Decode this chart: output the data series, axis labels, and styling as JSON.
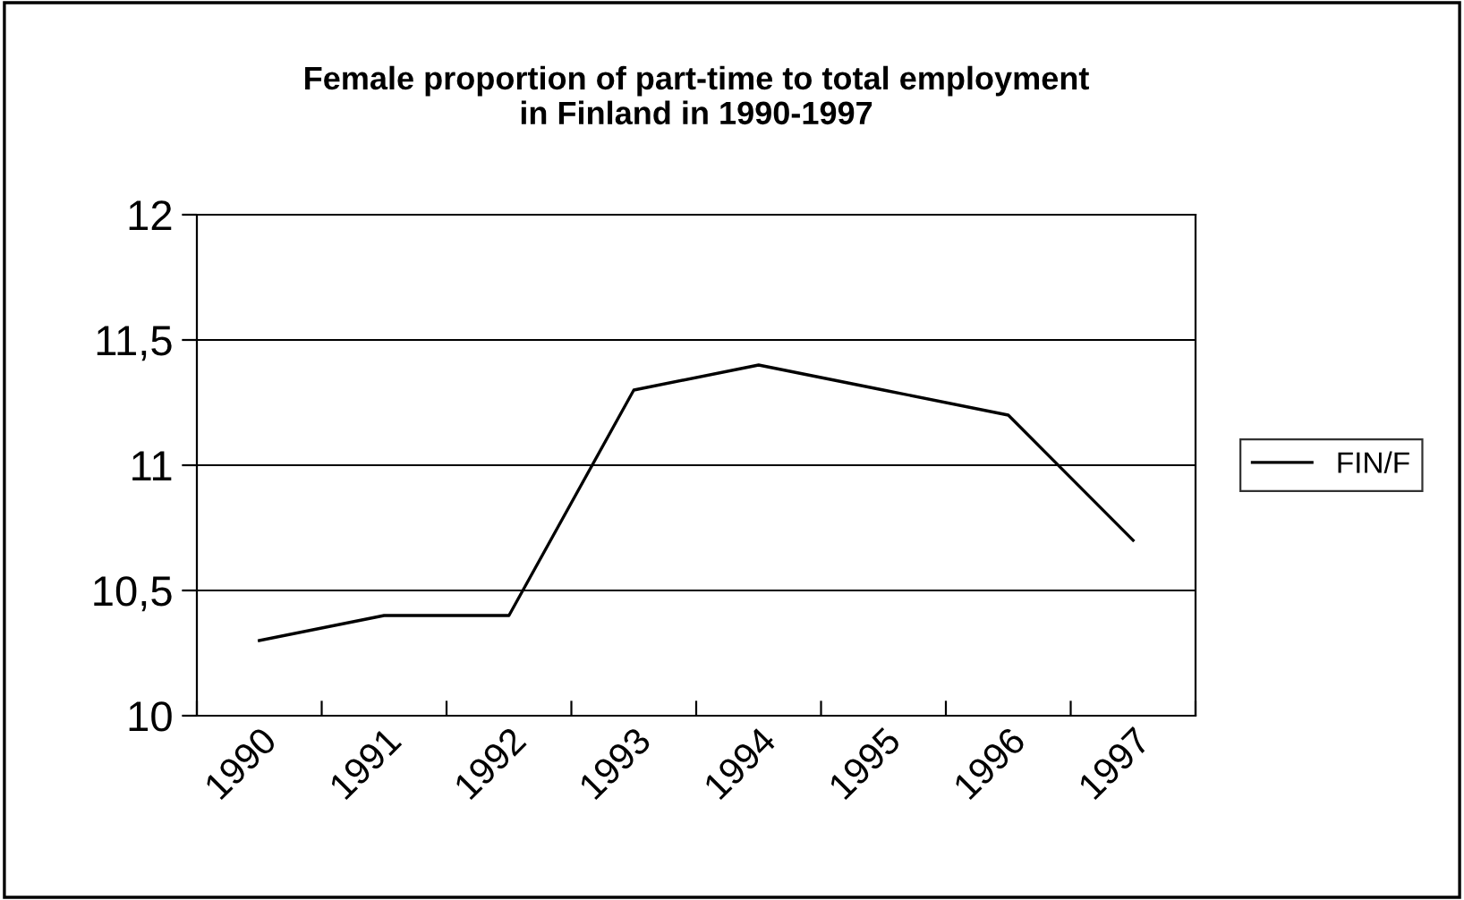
{
  "chart_data": {
    "type": "line",
    "title": "Female proportion of part-time to total employment\nin Finland in 1990-1997",
    "categories": [
      "1990",
      "1991",
      "1992",
      "1993",
      "1994",
      "1995",
      "1996",
      "1997"
    ],
    "series": [
      {
        "name": "FIN/F",
        "color": "#000000",
        "values": [
          10.3,
          10.4,
          10.4,
          11.3,
          11.4,
          11.3,
          11.2,
          10.7
        ]
      }
    ],
    "ylim": [
      10,
      12
    ],
    "yticks": [
      10,
      {
        "value": 10.5,
        "label": "10,5"
      },
      11,
      {
        "value": 11.5,
        "label": "11,5"
      },
      12
    ],
    "grid": "y",
    "legend": "right",
    "marker": "none",
    "line_style": "solid"
  }
}
